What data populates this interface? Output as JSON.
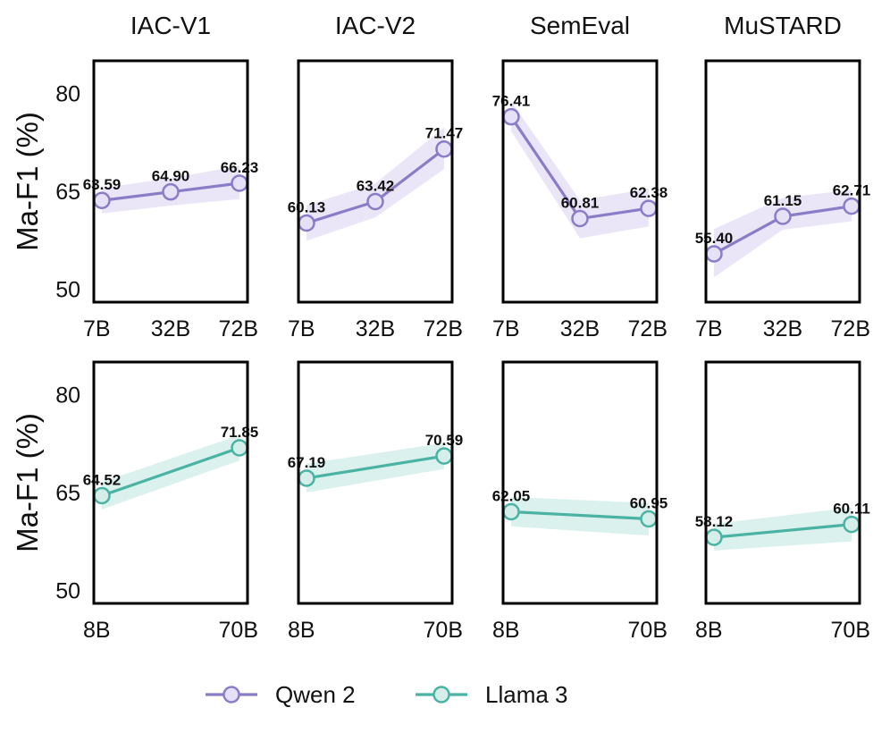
{
  "chart_data": {
    "type": "line",
    "ylabel": "Ma-F1 (%)",
    "ylim": [
      48,
      85
    ],
    "yticks": [
      50,
      65,
      80
    ],
    "datasets": [
      "IAC-V1",
      "IAC-V2",
      "SemEval",
      "MuSTARD"
    ],
    "rows": [
      {
        "series": "Qwen 2",
        "color": "#8b7cc8",
        "fill": "#e6e1f6",
        "x": [
          "7B",
          "32B",
          "72B"
        ],
        "panels": [
          {
            "dataset": "IAC-V1",
            "values": [
              63.59,
              64.9,
              66.23
            ],
            "band": [
              [
                61.6,
                65.5
              ],
              [
                62.8,
                67.0
              ],
              [
                63.8,
                68.9
              ]
            ]
          },
          {
            "dataset": "IAC-V2",
            "values": [
              60.13,
              63.42,
              71.47
            ],
            "band": [
              [
                57.4,
                62.8
              ],
              [
                61.0,
                66.2
              ],
              [
                68.4,
                74.8
              ]
            ]
          },
          {
            "dataset": "SemEval",
            "values": [
              76.41,
              60.81,
              62.38
            ],
            "band": [
              [
                74.2,
                78.8
              ],
              [
                57.8,
                63.6
              ],
              [
                59.6,
                65.4
              ]
            ]
          },
          {
            "dataset": "MuSTARD",
            "values": [
              55.4,
              61.15,
              62.71
            ],
            "band": [
              [
                51.8,
                59.2
              ],
              [
                59.1,
                64.0
              ],
              [
                60.4,
                65.2
              ]
            ]
          }
        ]
      },
      {
        "series": "Llama 3",
        "color": "#4ab3a3",
        "fill": "#d5eeea",
        "x": [
          "8B",
          "70B"
        ],
        "panels": [
          {
            "dataset": "IAC-V1",
            "values": [
              64.52,
              71.85
            ],
            "band": [
              [
                62.4,
                66.6
              ],
              [
                69.9,
                73.8
              ]
            ]
          },
          {
            "dataset": "IAC-V2",
            "values": [
              67.19,
              70.59
            ],
            "band": [
              [
                65.0,
                69.4
              ],
              [
                68.6,
                72.6
              ]
            ]
          },
          {
            "dataset": "SemEval",
            "values": [
              62.05,
              60.95
            ],
            "band": [
              [
                59.8,
                64.3
              ],
              [
                58.4,
                63.4
              ]
            ]
          },
          {
            "dataset": "MuSTARD",
            "values": [
              58.12,
              60.11
            ],
            "band": [
              [
                56.1,
                60.2
              ],
              [
                57.5,
                62.7
              ]
            ]
          }
        ]
      }
    ],
    "legend": [
      {
        "label": "Qwen 2",
        "color": "#8b7cc8"
      },
      {
        "label": "Llama 3",
        "color": "#4ab3a3"
      }
    ],
    "legend_position": "bottom-center"
  }
}
